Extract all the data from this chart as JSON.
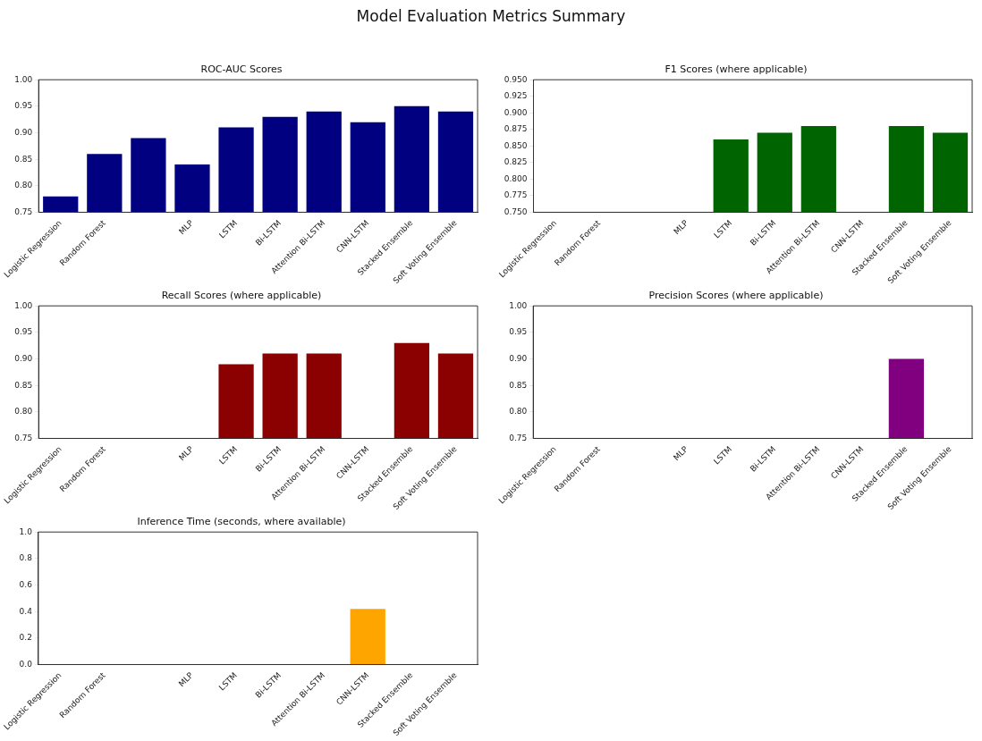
{
  "chart_data": [
    {
      "type": "other",
      "title": "Model Evaluation Metrics Summary"
    },
    {
      "type": "bar",
      "title": "ROC-AUC Scores",
      "categories": [
        "Logistic Regression",
        "Random Forest",
        null,
        "MLP",
        "LSTM",
        "Bi-LSTM",
        "Attention Bi-LSTM",
        "CNN-LSTM",
        "Stacked Ensemble",
        "Soft Voting Ensemble"
      ],
      "values": [
        0.78,
        0.86,
        0.89,
        0.84,
        0.91,
        0.93,
        0.94,
        0.92,
        0.95,
        0.94
      ],
      "color": "#000080",
      "ylim": [
        0.75,
        1.0
      ],
      "yticks": [
        {
          "value": 0.75,
          "label": "0.75"
        },
        {
          "value": 0.8,
          "label": "0.80"
        },
        {
          "value": 0.85,
          "label": "0.85"
        },
        {
          "value": 0.9,
          "label": "0.90"
        },
        {
          "value": 0.95,
          "label": "0.95"
        },
        {
          "value": 1.0,
          "label": "1.00"
        }
      ],
      "grid": false,
      "legend": false
    },
    {
      "type": "bar",
      "title": "F1 Scores (where applicable)",
      "categories": [
        "Logistic Regression",
        "Random Forest",
        null,
        "MLP",
        "LSTM",
        "Bi-LSTM",
        "Attention Bi-LSTM",
        "CNN-LSTM",
        "Stacked Ensemble",
        "Soft Voting Ensemble"
      ],
      "values": [
        null,
        null,
        null,
        null,
        0.86,
        0.87,
        0.88,
        null,
        0.88,
        0.87
      ],
      "color": "#006400",
      "ylim": [
        0.75,
        0.95
      ],
      "yticks": [
        {
          "value": 0.75,
          "label": "0.750"
        },
        {
          "value": 0.775,
          "label": "0.775"
        },
        {
          "value": 0.8,
          "label": "0.800"
        },
        {
          "value": 0.825,
          "label": "0.825"
        },
        {
          "value": 0.85,
          "label": "0.850"
        },
        {
          "value": 0.875,
          "label": "0.875"
        },
        {
          "value": 0.9,
          "label": "0.900"
        },
        {
          "value": 0.925,
          "label": "0.925"
        },
        {
          "value": 0.95,
          "label": "0.950"
        }
      ],
      "grid": false,
      "legend": false
    },
    {
      "type": "bar",
      "title": "Recall Scores (where applicable)",
      "categories": [
        "Logistic Regression",
        "Random Forest",
        null,
        "MLP",
        "LSTM",
        "Bi-LSTM",
        "Attention Bi-LSTM",
        "CNN-LSTM",
        "Stacked Ensemble",
        "Soft Voting Ensemble"
      ],
      "values": [
        null,
        null,
        null,
        null,
        0.89,
        0.91,
        0.91,
        null,
        0.93,
        0.91
      ],
      "color": "#8b0000",
      "ylim": [
        0.75,
        1.0
      ],
      "yticks": [
        {
          "value": 0.75,
          "label": "0.75"
        },
        {
          "value": 0.8,
          "label": "0.80"
        },
        {
          "value": 0.85,
          "label": "0.85"
        },
        {
          "value": 0.9,
          "label": "0.90"
        },
        {
          "value": 0.95,
          "label": "0.95"
        },
        {
          "value": 1.0,
          "label": "1.00"
        }
      ],
      "grid": false,
      "legend": false
    },
    {
      "type": "bar",
      "title": "Precision Scores (where applicable)",
      "categories": [
        "Logistic Regression",
        "Random Forest",
        null,
        "MLP",
        "LSTM",
        "Bi-LSTM",
        "Attention Bi-LSTM",
        "CNN-LSTM",
        "Stacked Ensemble",
        "Soft Voting Ensemble"
      ],
      "values": [
        null,
        null,
        null,
        null,
        null,
        null,
        null,
        null,
        0.9,
        null
      ],
      "color": "#800080",
      "ylim": [
        0.75,
        1.0
      ],
      "yticks": [
        {
          "value": 0.75,
          "label": "0.75"
        },
        {
          "value": 0.8,
          "label": "0.80"
        },
        {
          "value": 0.85,
          "label": "0.85"
        },
        {
          "value": 0.9,
          "label": "0.90"
        },
        {
          "value": 0.95,
          "label": "0.95"
        },
        {
          "value": 1.0,
          "label": "1.00"
        }
      ],
      "grid": false,
      "legend": false
    },
    {
      "type": "bar",
      "title": "Inference Time (seconds, where available)",
      "categories": [
        "Logistic Regression",
        "Random Forest",
        null,
        "MLP",
        "LSTM",
        "Bi-LSTM",
        "Attention Bi-LSTM",
        "CNN-LSTM",
        "Stacked Ensemble",
        "Soft Voting Ensemble"
      ],
      "values": [
        null,
        null,
        null,
        null,
        null,
        null,
        null,
        0.42,
        null,
        null
      ],
      "color": "#ffa500",
      "ylim": [
        0.0,
        1.0
      ],
      "yticks": [
        {
          "value": 0.0,
          "label": "0.0"
        },
        {
          "value": 0.2,
          "label": "0.2"
        },
        {
          "value": 0.4,
          "label": "0.4"
        },
        {
          "value": 0.6,
          "label": "0.6"
        },
        {
          "value": 0.8,
          "label": "0.8"
        },
        {
          "value": 1.0,
          "label": "1.0"
        }
      ],
      "grid": false,
      "legend": false
    }
  ]
}
